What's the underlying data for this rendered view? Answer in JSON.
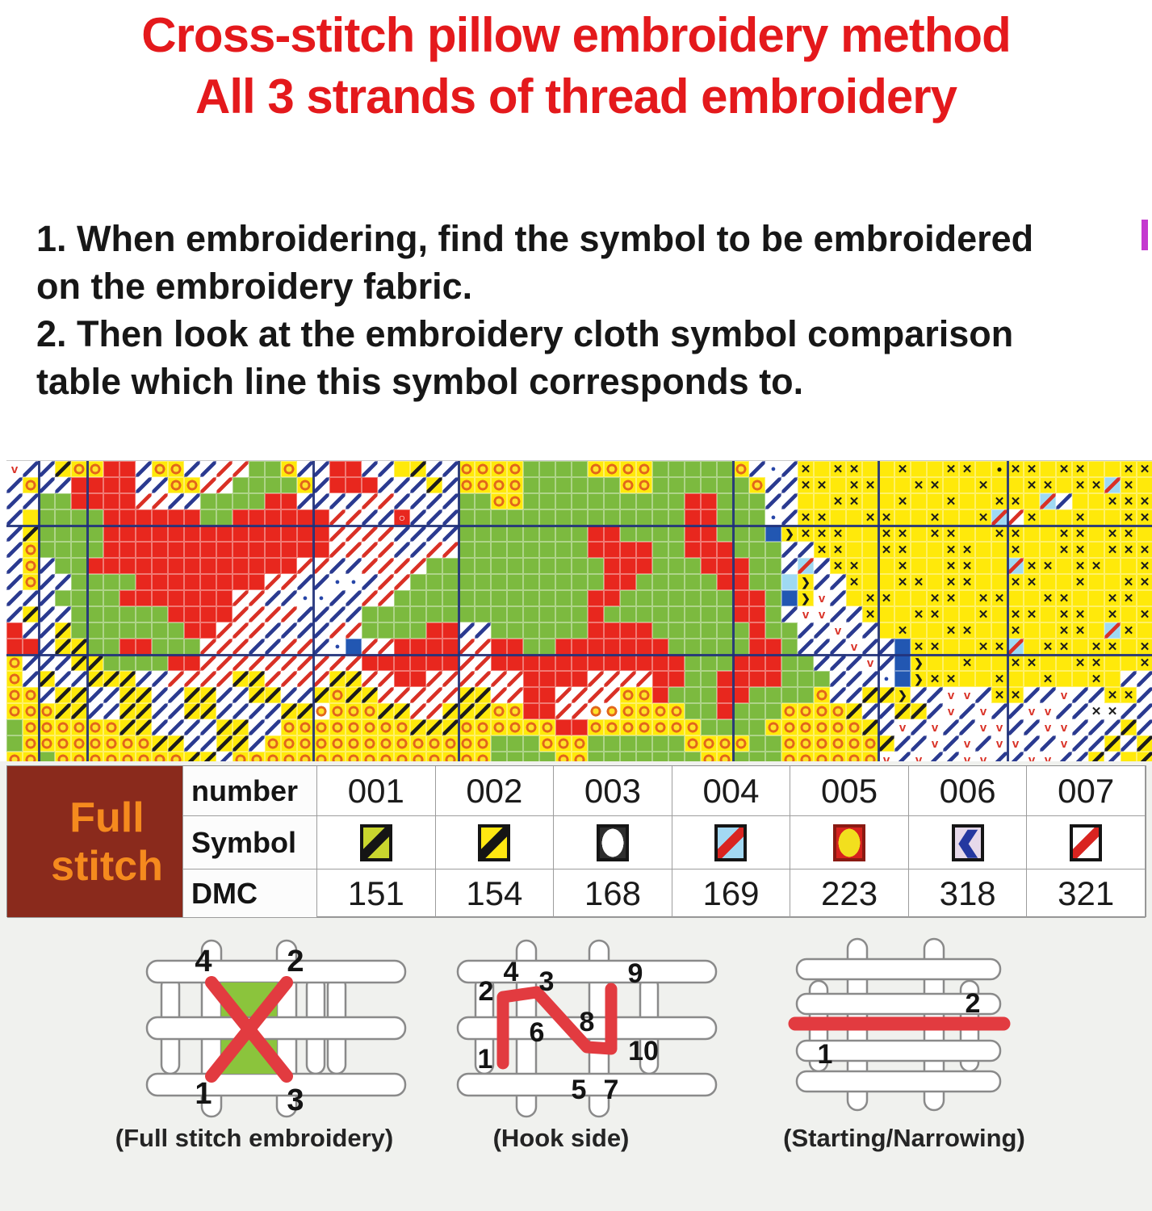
{
  "title": {
    "line1": "Cross-stitch pillow embroidery method",
    "line2": "All 3 strands of thread embroidery",
    "color": "#e4191c"
  },
  "instructions": {
    "text": "1. When embroidering, find the symbol to be embroidered\non the embroidery fabric.\n2. Then look at the embroidery cloth symbol comparison\ntable which line this symbol corresponds to."
  },
  "chart_pattern": {
    "colors": {
      "red": "#e8271e",
      "green": "#7cba3f",
      "yellow": "#ffe90a",
      "blue": "#2257b2",
      "lightblue": "#9fd9f2",
      "navy": "#2a3a90",
      "redline": "#d93025",
      "ring": "#e2661b",
      "ringcenter": "#ffe32a",
      "majorline": "#1d2d78"
    },
    "legend": {
      "R": "solid red stitch",
      "G": "solid green stitch",
      "Y": "plain yellow stitch",
      "B": "solid blue stitch",
      "t": "solid light blue stitch",
      ".": "empty fabric",
      "b": "navy diagonal on white",
      "r": "red diagonal on white",
      "D": "black diagonal on yellow",
      "C": "red diagonal on light blue",
      "O": "orange ring on yellow",
      "Q": "orange ring on white",
      "X": "black cross on yellow",
      "x": "black cross on white",
      "V": "red v on white",
      "n": "black v on white",
      ">": "black chevron on yellow",
      "P": "blue dot on white",
      "e": "white ring on red",
      "K": "black dot on yellow"
    },
    "major_v_cols": [
      2,
      5,
      19,
      28,
      45,
      54,
      62
    ],
    "major_h_rows": [
      4,
      12
    ],
    "rows": [
      "VbbDOORRbOObbrrGGObbRRbbYDbbOOOOGGGGOOOOGGGGGObPbXYXXYYXYYXXYKXXYXXYYXX",
      "bObbRRRRbbOOrrGGGGObRRRbbbDbOOOOGGGGGGOOGGGGGGObbXXYXXYYXXYYXYYXXYXXCXY",
      "bbGGRRRRrrbbGGGGRRbbbbrrbbbbGGOOGGGGGGGGGGRRGGGbbYYXXYYXYYXYYXXYCbYYXXX",
      "bYGGGGRRRRRRGGRRRRRRrrbbebbbGGGGGGGGGGGGGGRRGGGPbXXYYXXYYXYYXCrXYYXYYXX",
      "bDGGGGRRRRRRRRRRRRRRrrrrbbbbGGGGGGGGRRGGGGRRGGGB>XXXYYXXYXXYYXXYYXXYXXY",
      "bOGGGGRRRRRRRRRRRRRRrrrrbbrrGGGGGGGGRRRRGGRRRGGGbbXXYYXXYYXXYYXYYXXYXXX",
      "bObGGRRRRRRRRRRRRRrrbbrrrrGGGGGGGGGGGRRRGGGRRRGGbCbXXYYXYYXXYYCXXYXXYYX",
      "bObbGGGGRRRRRRRRrrbbPPbrrGGGGGGGGGGGGRRGGGGGRRGGt>bbXYYXXYXXYYXXYYXYYXX",
      "bbbGGGGRRRRRRRrrbbPPbbrrGGGGGGGGGGGGRRGGGGGGGRRGB>VbYXXYYXXYXXYYXXYYXXY",
      "bDbbGGGGGGRRRRrrrrbbbbGGGGGGGGGGGGGGRGGGGGGGGRRGbVVbbXYYXXYYXYXXYXXYXYX",
      "RbbDGGGGGGGRRrrrbbbbrrGGGGRRbbGGGGGGRRRRGGGGGGRGGbbVbbYXYYXXYYXYYXXYCXY",
      "RRbDDGGRRGGGrrrbbrrbPBrrRRRRrrRRGGRRRRRRRGGGGGRRGbbbVbbBXXYYXXCYXXYXXYX",
      "ObbbDDGGGGRRrrrrrrrrrrRRRRRRrrRRRRRRRRRRRRGGGRRRGGbbbVbB>YYXYYXXYYXXYYX",
      "ObDbbDDDbbrrrrDDrrrrDDrrRRrrrrrrRRRRrrrrRRGGRRRRGGGbbbPB>XXYYXYYXYYXYbb",
      "OObDDbbDDbbDDbbDDbbDODDrrrrrDDrrRRrrrrOORGGGRRGGGGObbDD>bbVVbXXbbVbbXXb",
      "OOODDbbDDbbDDbbbbDDQOOODDrrDDDOORRrrQQOOOOGGRGGGOOOODbbDDbVbVbbVVbbxxbb",
      "GOOOOOODDbbbbDDbbOOOOOOOODDDOOOOOORROOOOOOOGGGGOOOOOODbVbVbbVVbbVVbbbDb",
      "GOOOOOOOODDbbDDbOOOOOOOOOOOOOOGGGOOOGGGGGGOOOOGGOOOOOODbbVbVbVVbbVbbDbD",
      "OOGOOOOOOOODDbOOOOOOOOOOOOOOOOGGGGOOGGGGGGGOOGGGOOOOOOVbVbbVVbbVVbbDbYD"
    ]
  },
  "table": {
    "group_label_line1": "Full",
    "group_label_line2": "stitch",
    "row_labels": [
      "number",
      "Symbol",
      "DMC"
    ],
    "columns": [
      {
        "number": "001",
        "dmc": "151",
        "symbol": {
          "kind": "diagonal",
          "bg": "#c9d62e",
          "fg": "#151515",
          "border": "#151515"
        }
      },
      {
        "number": "002",
        "dmc": "154",
        "symbol": {
          "kind": "diagonal",
          "bg": "#ffe711",
          "fg": "#151515",
          "border": "#151515"
        }
      },
      {
        "number": "003",
        "dmc": "168",
        "symbol": {
          "kind": "circle",
          "bg": "#2e2e2e",
          "fg": "#ffffff",
          "border": "#151515"
        }
      },
      {
        "number": "004",
        "dmc": "169",
        "symbol": {
          "kind": "diagonal",
          "bg": "#a3d8f2",
          "fg": "#d92420",
          "border": "#151515"
        }
      },
      {
        "number": "005",
        "dmc": "223",
        "symbol": {
          "kind": "circle",
          "bg": "#d6231e",
          "fg": "#f2df1e",
          "border": "#8a1a12"
        }
      },
      {
        "number": "006",
        "dmc": "318",
        "symbol": {
          "kind": "chevron",
          "bg": "#e6d9ea",
          "fg": "#2438a0",
          "border": "#151515"
        }
      },
      {
        "number": "007",
        "dmc": "321",
        "symbol": {
          "kind": "diagonal",
          "bg": "#ffffff",
          "fg": "#d92420",
          "border": "#151515"
        }
      }
    ]
  },
  "diagrams": [
    {
      "caption": "(Full stitch embroidery)",
      "numbers": [
        "4",
        "2",
        "1",
        "3"
      ]
    },
    {
      "caption": "(Hook side)",
      "numbers": [
        "2",
        "4",
        "3",
        "9",
        "6",
        "8",
        "1",
        "5",
        "7",
        "10"
      ]
    },
    {
      "caption": "(Starting/Narrowing)",
      "numbers": [
        "2",
        "1"
      ]
    }
  ]
}
